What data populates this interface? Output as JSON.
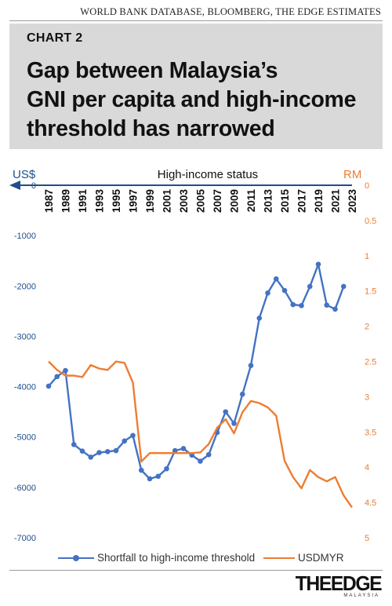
{
  "source": "WORLD BANK DATABASE, BLOOMBERG, THE EDGE ESTIMATES",
  "header": {
    "chart_label": "CHART 2",
    "title_lines": [
      "Gap between Malaysia’s",
      "GNI per capita and high-income",
      "threshold has narrowed"
    ]
  },
  "logo": {
    "main": "THEEDGE",
    "sub": "MALAYSIA"
  },
  "colors": {
    "blue": "#4472c4",
    "orange": "#ed7d31",
    "axis_navy": "#1f4e8c",
    "header_bg": "#d9d9d9"
  },
  "chart_data": {
    "type": "line",
    "left_axis": {
      "unit_label": "US$",
      "ticks": [
        0,
        -1000,
        -2000,
        -3000,
        -4000,
        -5000,
        -6000,
        -7000
      ],
      "range": [
        -7000,
        0
      ]
    },
    "right_axis": {
      "unit_label": "RM",
      "ticks": [
        0,
        0.5,
        1,
        1.5,
        2,
        2.5,
        3,
        3.5,
        4,
        4.5,
        5
      ],
      "range": [
        5,
        0
      ],
      "inverted": true
    },
    "top_annotation": "High-income status",
    "x": [
      1987,
      1988,
      1989,
      1990,
      1991,
      1992,
      1993,
      1994,
      1995,
      1996,
      1997,
      1998,
      1999,
      2000,
      2001,
      2002,
      2003,
      2004,
      2005,
      2006,
      2007,
      2008,
      2009,
      2010,
      2011,
      2012,
      2013,
      2014,
      2015,
      2016,
      2017,
      2018,
      2019,
      2020,
      2021,
      2022,
      2023
    ],
    "x_tick_labels": [
      "1987",
      "1989",
      "1991",
      "1993",
      "1995",
      "1997",
      "1999",
      "2001",
      "2003",
      "2005",
      "2007",
      "2009",
      "2011",
      "2013",
      "2015",
      "2017",
      "2019",
      "2021",
      "2023"
    ],
    "series": [
      {
        "name": "Shortfall to high-income threshold",
        "axis": "left",
        "markers": true,
        "values": [
          -3990,
          -3800,
          -3680,
          -5150,
          -5280,
          -5400,
          -5310,
          -5290,
          -5270,
          -5080,
          -4970,
          -5660,
          -5830,
          -5780,
          -5630,
          -5270,
          -5230,
          -5360,
          -5480,
          -5350,
          -4910,
          -4500,
          -4730,
          -4150,
          -3580,
          -2640,
          -2140,
          -1860,
          -2090,
          -2370,
          -2390,
          -2010,
          -1570,
          -2380,
          -2460,
          -2010,
          null
        ]
      },
      {
        "name": "USDMYR",
        "axis": "right",
        "markers": false,
        "values": [
          2.5,
          2.62,
          2.7,
          2.7,
          2.72,
          2.55,
          2.6,
          2.62,
          2.5,
          2.52,
          2.8,
          3.92,
          3.8,
          3.8,
          3.8,
          3.8,
          3.8,
          3.8,
          3.79,
          3.67,
          3.44,
          3.32,
          3.52,
          3.22,
          3.06,
          3.09,
          3.15,
          3.27,
          3.91,
          4.14,
          4.3,
          4.04,
          4.14,
          4.2,
          4.14,
          4.4,
          4.57
        ]
      }
    ]
  }
}
